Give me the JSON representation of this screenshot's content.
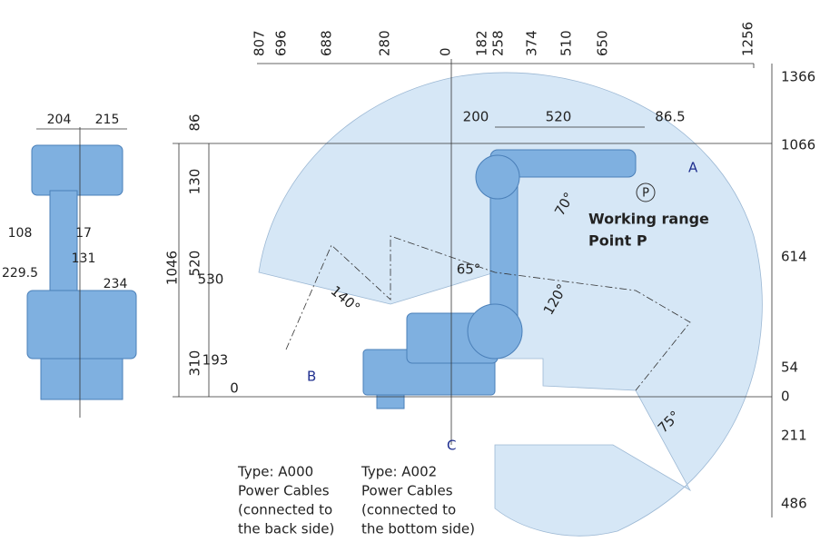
{
  "top_dimensions": [
    807,
    696,
    688,
    280,
    0,
    182,
    258,
    374,
    510,
    650,
    1256
  ],
  "right_dimensions": [
    1366,
    1066,
    614,
    54,
    0,
    211,
    486
  ],
  "left_dimensions": [
    86,
    130,
    520,
    310,
    1046,
    530,
    193,
    0
  ],
  "arm_dimensions": [
    200,
    520,
    86.5
  ],
  "angles": [
    "70°",
    "65°",
    "140°",
    "120°",
    "75°"
  ],
  "side_view_dimensions": [
    204,
    215,
    108,
    17,
    131,
    229.5,
    234
  ],
  "markers": {
    "a": "A",
    "b": "B",
    "c": "C",
    "p": "P"
  },
  "working_range": [
    "Working range",
    "Point P"
  ],
  "cable_a000": [
    "Type:  A000",
    "Power Cables",
    "(connected to",
    "the back side)"
  ],
  "cable_a002": [
    "Type:  A002",
    "Power Cables",
    "(connected to",
    "the bottom side)"
  ]
}
